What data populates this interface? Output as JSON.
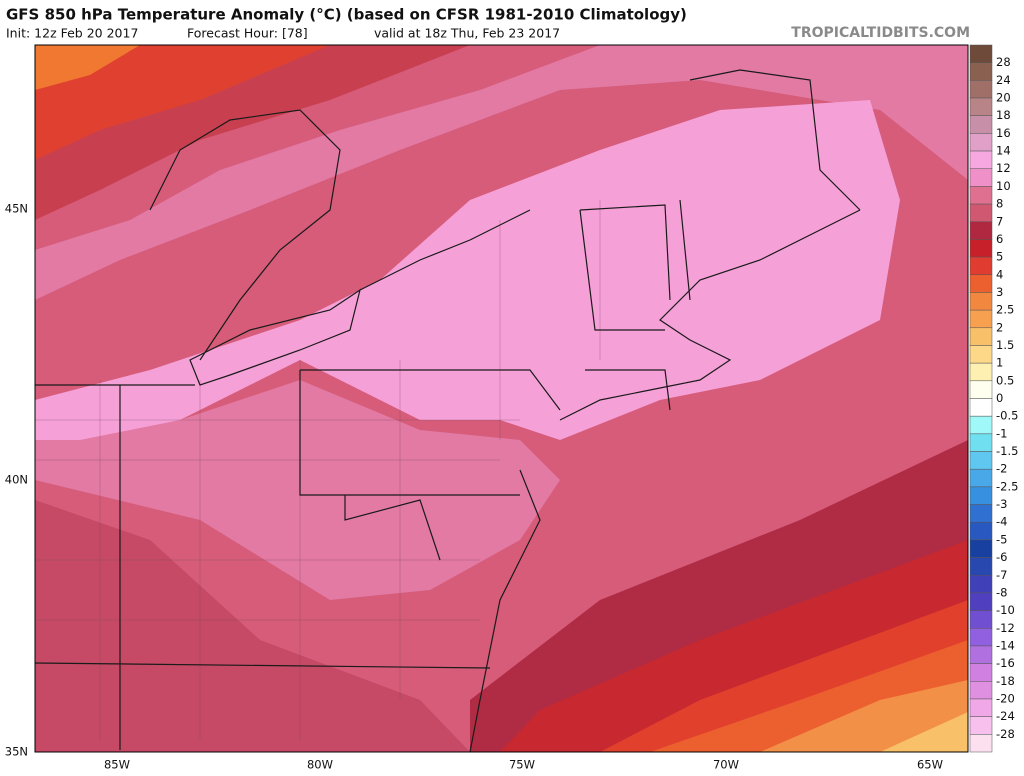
{
  "header": {
    "title": "GFS 850 hPa Temperature Anomaly (°C) (based on CFSR 1981-2010 Climatology)",
    "init": "Init: 12z Feb 20 2017",
    "forecast_hour": "Forecast Hour: [78]",
    "valid": "valid at 18z Thu, Feb 23 2017",
    "site": "TROPICALTIDBITS.COM"
  },
  "map": {
    "lat_labels": [
      "45N",
      "40N",
      "35N"
    ],
    "lon_labels": [
      "85W",
      "80W",
      "75W",
      "70W",
      "65W"
    ]
  },
  "colorbar": {
    "labels": [
      "28",
      "24",
      "20",
      "18",
      "16",
      "14",
      "12",
      "10",
      "8",
      "7",
      "6",
      "5",
      "4",
      "3",
      "2.5",
      "2",
      "1.5",
      "1",
      "0.5",
      "0",
      "-0.5",
      "-1",
      "-1.5",
      "-2",
      "-2.5",
      "-3",
      "-4",
      "-5",
      "-6",
      "-7",
      "-8",
      "-10",
      "-12",
      "-14",
      "-16",
      "-18",
      "-20",
      "-24",
      "-28"
    ],
    "colors": [
      "#6e4a3a",
      "#8a6050",
      "#a07068",
      "#b88488",
      "#c890a8",
      "#e0a0c8",
      "#f8a8e0",
      "#f090c8",
      "#e07090",
      "#d05870",
      "#b02840",
      "#c8202a",
      "#e03c30",
      "#ec6030",
      "#f28840",
      "#f6a050",
      "#f8c068",
      "#fcd888",
      "#fef0b0",
      "#fffff0",
      "#ffffff",
      "#a0f8f8",
      "#70e0f0",
      "#60c8f0",
      "#48a8e8",
      "#3890e0",
      "#3070d0",
      "#2858c0",
      "#1840a0",
      "#2848b0",
      "#4040b8",
      "#5040c0",
      "#7050d0",
      "#9060e0",
      "#b070e0",
      "#d080e0",
      "#e090e0",
      "#f0a8e8",
      "#f8c0ec",
      "#fce0f0"
    ]
  }
}
